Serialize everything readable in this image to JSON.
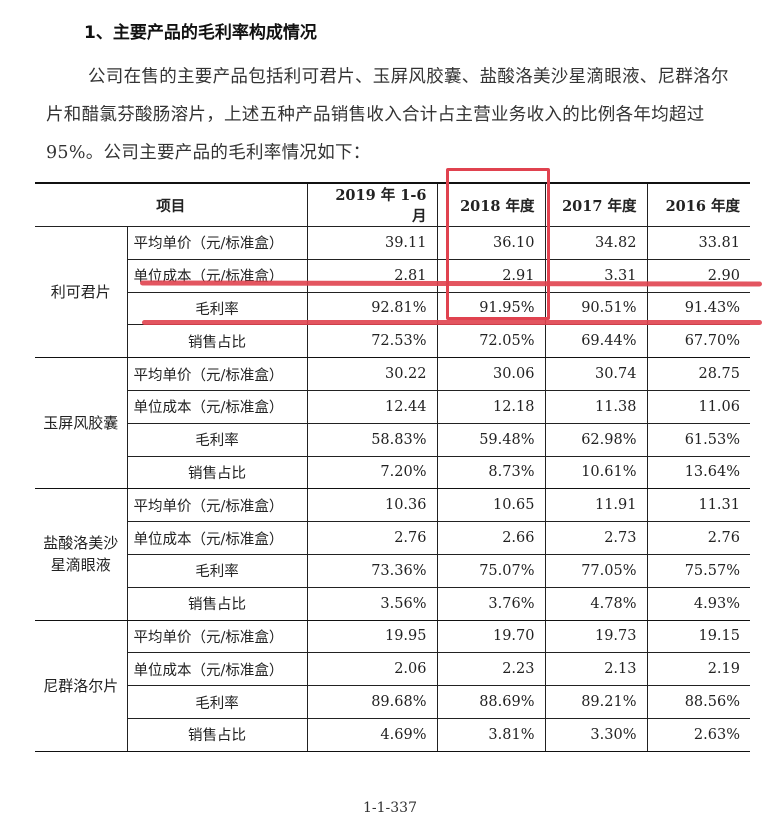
{
  "heading": "1、主要产品的毛利率构成情况",
  "paragraph": "公司在售的主要产品包括利可君片、玉屏风胶囊、盐酸洛美沙星滴眼液、尼群洛尔片和醋氯芬酸肠溶片，上述五种产品销售收入合计占主营业务收入的比例各年均超过 95%。公司主要产品的毛利率情况如下：",
  "table": {
    "headers": [
      "项目",
      "2019 年 1-6 月",
      "2018 年度",
      "2017 年度",
      "2016 年度"
    ],
    "groups": [
      {
        "product": "利可君片",
        "rows": [
          {
            "item": "平均单价（元/标准盒）",
            "values": [
              "39.11",
              "36.10",
              "34.82",
              "33.81"
            ]
          },
          {
            "item": "单位成本（元/标准盒）",
            "values": [
              "2.81",
              "2.91",
              "3.31",
              "2.90"
            ]
          },
          {
            "item": "毛利率",
            "values": [
              "92.81%",
              "91.95%",
              "90.51%",
              "91.43%"
            ]
          },
          {
            "item": "销售占比",
            "values": [
              "72.53%",
              "72.05%",
              "69.44%",
              "67.70%"
            ]
          }
        ]
      },
      {
        "product": "玉屏风胶囊",
        "rows": [
          {
            "item": "平均单价（元/标准盒）",
            "values": [
              "30.22",
              "30.06",
              "30.74",
              "28.75"
            ]
          },
          {
            "item": "单位成本（元/标准盒）",
            "values": [
              "12.44",
              "12.18",
              "11.38",
              "11.06"
            ]
          },
          {
            "item": "毛利率",
            "values": [
              "58.83%",
              "59.48%",
              "62.98%",
              "61.53%"
            ]
          },
          {
            "item": "销售占比",
            "values": [
              "7.20%",
              "8.73%",
              "10.61%",
              "13.64%"
            ]
          }
        ]
      },
      {
        "product": "盐酸洛美沙星滴眼液",
        "rows": [
          {
            "item": "平均单价（元/标准盒）",
            "values": [
              "10.36",
              "10.65",
              "11.91",
              "11.31"
            ]
          },
          {
            "item": "单位成本（元/标准盒）",
            "values": [
              "2.76",
              "2.66",
              "2.73",
              "2.76"
            ]
          },
          {
            "item": "毛利率",
            "values": [
              "73.36%",
              "75.07%",
              "77.05%",
              "75.57%"
            ]
          },
          {
            "item": "销售占比",
            "values": [
              "3.56%",
              "3.76%",
              "4.78%",
              "4.93%"
            ]
          }
        ]
      },
      {
        "product": "尼群洛尔片",
        "rows": [
          {
            "item": "平均单价（元/标准盒）",
            "values": [
              "19.95",
              "19.70",
              "19.73",
              "19.15"
            ]
          },
          {
            "item": "单位成本（元/标准盒）",
            "values": [
              "2.06",
              "2.23",
              "2.13",
              "2.19"
            ]
          },
          {
            "item": "毛利率",
            "values": [
              "89.68%",
              "88.69%",
              "89.21%",
              "88.56%"
            ]
          },
          {
            "item": "销售占比",
            "values": [
              "4.69%",
              "3.81%",
              "3.30%",
              "2.63%"
            ]
          }
        ]
      }
    ]
  },
  "annotation_color": "#e0424f",
  "page_number": "1-1-337"
}
